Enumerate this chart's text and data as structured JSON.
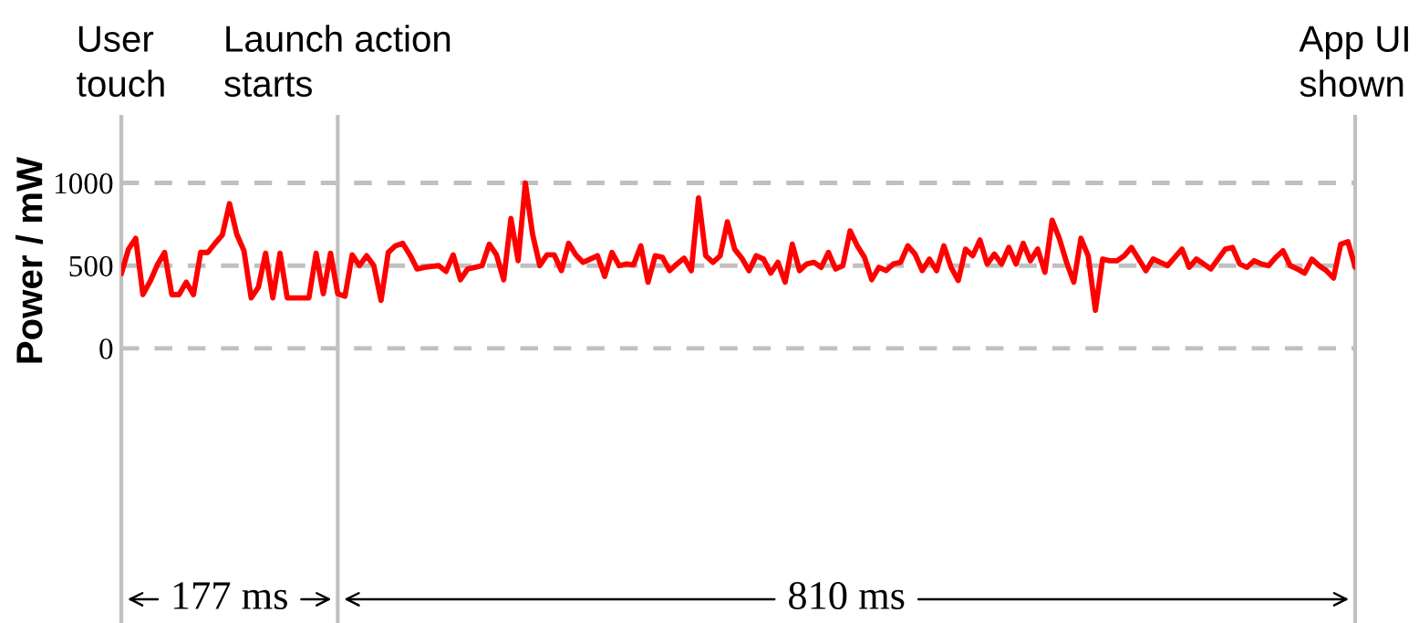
{
  "chart_data": {
    "type": "line",
    "color": "#ff0000",
    "line_style": "solid",
    "ylabel": "Power / mW",
    "ylim": [
      -1660,
      1400
    ],
    "yticks": [
      0,
      500,
      1000
    ],
    "grid": true,
    "annotations": [
      "177 ms",
      "810 ms"
    ],
    "categories": [
      "User\ntouch",
      null,
      null,
      null,
      null,
      null,
      null,
      null,
      null,
      null,
      null,
      null,
      null,
      null,
      null,
      null,
      null,
      null,
      null,
      null,
      null,
      null,
      null,
      null,
      null,
      null,
      null,
      null,
      null,
      null,
      "Launch action\nstarts",
      null,
      null,
      null,
      null,
      null,
      null,
      null,
      null,
      null,
      null,
      null,
      null,
      null,
      null,
      null,
      null,
      null,
      null,
      null,
      null,
      null,
      null,
      null,
      null,
      null,
      null,
      null,
      null,
      null,
      null,
      null,
      null,
      null,
      null,
      null,
      null,
      null,
      null,
      null,
      null,
      null,
      null,
      null,
      null,
      null,
      null,
      null,
      null,
      null,
      null,
      null,
      null,
      null,
      null,
      null,
      null,
      null,
      null,
      null,
      null,
      null,
      null,
      null,
      null,
      null,
      null,
      null,
      null,
      null,
      null,
      null,
      null,
      null,
      null,
      null,
      null,
      null,
      null,
      null,
      null,
      null,
      null,
      null,
      null,
      null,
      null,
      null,
      null,
      null,
      null,
      null,
      null,
      null,
      null,
      null,
      null,
      null,
      null,
      null,
      null,
      null,
      null,
      null,
      null,
      null,
      null,
      null,
      null,
      null,
      null,
      null,
      null,
      null,
      null,
      null,
      null,
      null,
      null,
      null,
      null,
      null,
      null,
      null,
      null,
      null,
      null,
      null,
      null,
      null,
      null,
      null,
      null,
      null,
      null,
      null,
      null,
      null,
      null,
      null,
      null,
      "App UI\nshown"
    ],
    "values": [
      450,
      600,
      665,
      325,
      405,
      505,
      580,
      325,
      325,
      400,
      325,
      580,
      580,
      635,
      685,
      875,
      690,
      590,
      305,
      370,
      575,
      305,
      575,
      305,
      305,
      305,
      305,
      575,
      330,
      575,
      330,
      315,
      565,
      500,
      560,
      500,
      290,
      580,
      620,
      635,
      565,
      480,
      490,
      495,
      500,
      465,
      565,
      415,
      480,
      490,
      500,
      630,
      565,
      415,
      785,
      530,
      1000,
      690,
      500,
      565,
      565,
      470,
      635,
      565,
      520,
      540,
      560,
      435,
      580,
      500,
      510,
      505,
      620,
      400,
      560,
      550,
      470,
      510,
      545,
      470,
      910,
      560,
      520,
      560,
      765,
      600,
      545,
      470,
      560,
      540,
      455,
      520,
      400,
      630,
      470,
      510,
      520,
      490,
      580,
      480,
      500,
      710,
      620,
      550,
      415,
      490,
      470,
      510,
      520,
      620,
      570,
      470,
      540,
      470,
      620,
      490,
      410,
      600,
      560,
      655,
      510,
      570,
      510,
      610,
      510,
      635,
      530,
      600,
      460,
      775,
      665,
      520,
      400,
      665,
      560,
      230,
      540,
      530,
      530,
      560,
      610,
      540,
      470,
      540,
      520,
      500,
      550,
      600,
      490,
      540,
      510,
      480,
      540,
      600,
      610,
      510,
      490,
      530,
      510,
      500,
      550,
      590,
      500,
      480,
      455,
      540,
      500,
      470,
      425,
      630,
      645,
      490
    ]
  }
}
